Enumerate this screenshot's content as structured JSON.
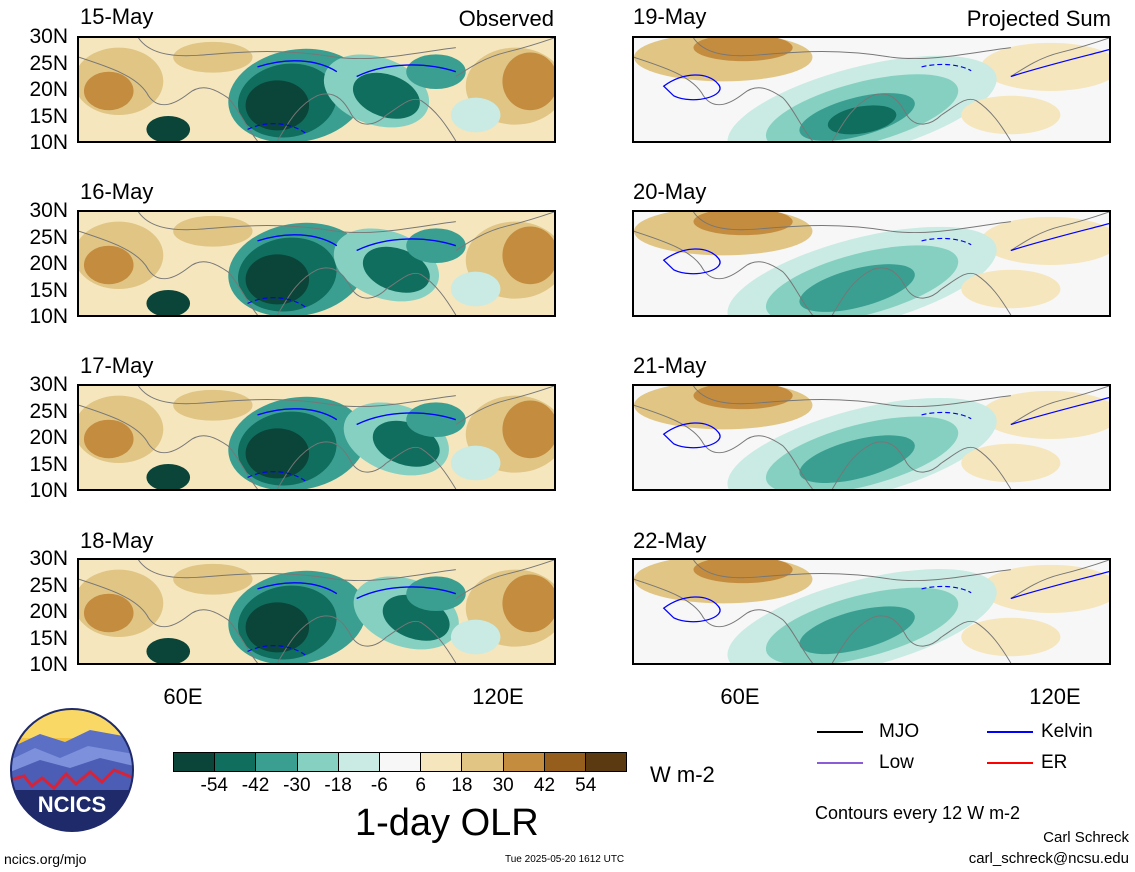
{
  "observed_label": "Observed",
  "projected_label": "Projected Sum",
  "observed_dates": [
    "15-May",
    "16-May",
    "17-May",
    "18-May"
  ],
  "projected_dates": [
    "19-May",
    "20-May",
    "21-May",
    "22-May"
  ],
  "lat_labels": [
    "30N",
    "25N",
    "20N",
    "15N",
    "10N"
  ],
  "lon_labels": [
    "60E",
    "120E"
  ],
  "colorbar": {
    "colors": [
      "#0b4438",
      "#0f6e5e",
      "#3a9f91",
      "#86d0c2",
      "#c9ebe3",
      "#f7f7f7",
      "#f5e6bd",
      "#e0c585",
      "#c48c3f",
      "#955e1c",
      "#5b3a12"
    ],
    "ticks": [
      "-54",
      "-42",
      "-30",
      "-18",
      "-6",
      "6",
      "18",
      "30",
      "42",
      "54"
    ]
  },
  "units": "W m-2",
  "title": "1-day OLR",
  "legend": [
    {
      "label": "MJO",
      "color": "#000000"
    },
    {
      "label": "Kelvin",
      "color": "#0000ff"
    },
    {
      "label": "Low",
      "color": "#8a5cd6"
    },
    {
      "label": "ER",
      "color": "#ff0000"
    }
  ],
  "contours_note": "Contours every 12 W m-2",
  "author": "Carl Schreck",
  "email": "carl_schreck@ncsu.edu",
  "website": "ncics.org/mjo",
  "timestamp": "Tue 2025-05-20 1612 UTC",
  "logo_text": "NCICS"
}
